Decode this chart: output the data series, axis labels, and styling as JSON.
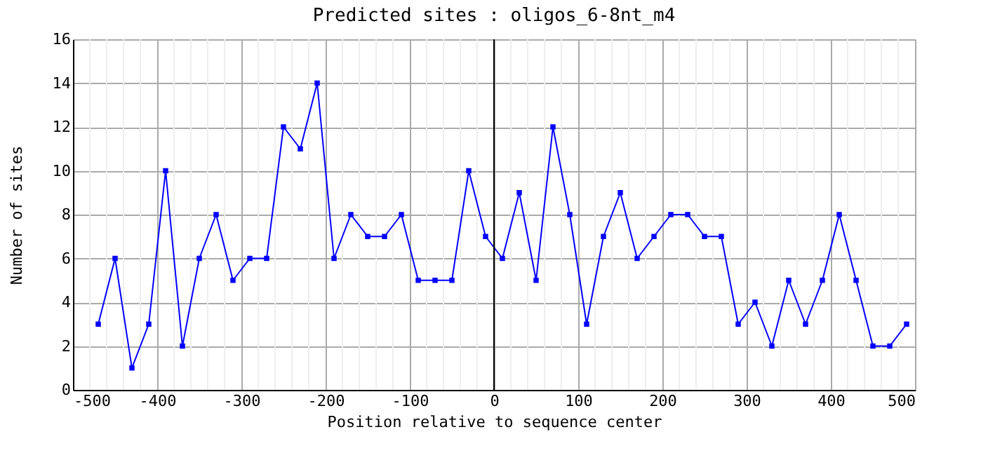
{
  "chart_data": {
    "type": "line",
    "title": "Predicted sites : oligos_6-8nt_m4",
    "xlabel": "Position relative to sequence center",
    "ylabel": "Number of sites",
    "x": [
      -470,
      -450,
      -430,
      -410,
      -390,
      -370,
      -350,
      -330,
      -310,
      -290,
      -270,
      -250,
      -230,
      -210,
      -190,
      -170,
      -150,
      -130,
      -110,
      -90,
      -70,
      -50,
      -30,
      -10,
      10,
      30,
      50,
      70,
      90,
      110,
      130,
      150,
      170,
      190,
      210,
      230,
      250,
      270,
      290,
      310,
      330,
      350,
      370,
      390,
      410,
      430,
      450,
      470,
      490
    ],
    "series": [
      {
        "color": "#0000ff",
        "values": [
          3,
          6,
          1,
          3,
          10,
          2,
          6,
          8,
          5,
          6,
          6,
          12,
          11,
          14,
          6,
          8,
          7,
          7,
          8,
          5,
          5,
          5,
          10,
          7,
          6,
          9,
          5,
          12,
          8,
          3,
          7,
          9,
          6,
          7,
          8,
          8,
          7,
          7,
          3,
          4,
          2,
          5,
          3,
          5,
          8,
          5,
          2,
          2,
          3
        ]
      }
    ],
    "xlim": [
      -500,
      500
    ],
    "xticks": [
      -500,
      {
        "value": -480,
        "label": null
      },
      {
        "value": -460,
        "label": null
      },
      {
        "value": -440,
        "label": null
      },
      {
        "value": -420,
        "label": null
      },
      -400,
      {
        "value": -380,
        "label": null
      },
      {
        "value": -360,
        "label": null
      },
      {
        "value": -340,
        "label": null
      },
      {
        "value": -320,
        "label": null
      },
      -300,
      {
        "value": -280,
        "label": null
      },
      {
        "value": -260,
        "label": null
      },
      {
        "value": -240,
        "label": null
      },
      {
        "value": -220,
        "label": null
      },
      -200,
      {
        "value": -180,
        "label": null
      },
      {
        "value": -160,
        "label": null
      },
      {
        "value": -140,
        "label": null
      },
      {
        "value": -120,
        "label": null
      },
      -100,
      {
        "value": -80,
        "label": null
      },
      {
        "value": -60,
        "label": null
      },
      {
        "value": -40,
        "label": null
      },
      {
        "value": -20,
        "label": null
      },
      0,
      {
        "value": 20,
        "label": null
      },
      {
        "value": 40,
        "label": null
      },
      {
        "value": 60,
        "label": null
      },
      {
        "value": 80,
        "label": null
      },
      100,
      {
        "value": 120,
        "label": null
      },
      {
        "value": 140,
        "label": null
      },
      {
        "value": 160,
        "label": null
      },
      {
        "value": 180,
        "label": null
      },
      200,
      {
        "value": 220,
        "label": null
      },
      {
        "value": 240,
        "label": null
      },
      {
        "value": 260,
        "label": null
      },
      {
        "value": 280,
        "label": null
      },
      300,
      {
        "value": 320,
        "label": null
      },
      {
        "value": 340,
        "label": null
      },
      {
        "value": 360,
        "label": null
      },
      {
        "value": 380,
        "label": null
      },
      400,
      {
        "value": 420,
        "label": null
      },
      {
        "value": 440,
        "label": null
      },
      {
        "value": 460,
        "label": null
      },
      {
        "value": 480,
        "label": null
      },
      500
    ],
    "ylim": [
      0,
      16
    ],
    "yticks": [
      0,
      2,
      4,
      6,
      8,
      10,
      12,
      14,
      16
    ],
    "ref_lines": [
      {
        "axis": "x",
        "value": 0,
        "color": "#000000"
      }
    ],
    "grid": true,
    "marker": "square",
    "line_style": "solid"
  }
}
